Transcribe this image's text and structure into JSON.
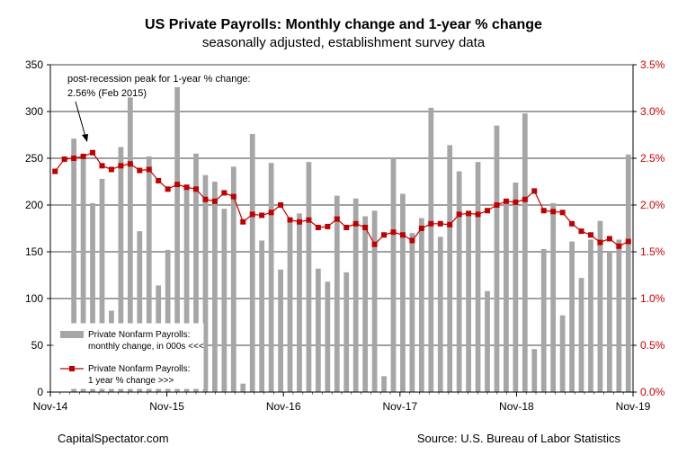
{
  "chart_data": {
    "type": "bar+line",
    "title": "US Private Payrolls: Monthly change and 1-year % change",
    "subtitle": "seasonally adjusted, establishment survey data",
    "x_tick_labels": [
      "Nov-14",
      "Nov-15",
      "Nov-16",
      "Nov-17",
      "Nov-18",
      "Nov-19"
    ],
    "y_left": {
      "min": 0,
      "max": 350,
      "ticks": [
        "0",
        "50",
        "100",
        "150",
        "200",
        "250",
        "300",
        "350"
      ]
    },
    "y_right": {
      "min": 0,
      "max": 3.5,
      "ticks": [
        "0.0%",
        "0.5%",
        "1.0%",
        "1.5%",
        "2.0%",
        "2.5%",
        "3.0%",
        "3.5%"
      ]
    },
    "grid": true,
    "legend_position": "bottom-left",
    "series": [
      {
        "name": "Private Nonfarm Payrolls:",
        "name_line2": "monthly change, in 000s <<<",
        "kind": "bar",
        "axis": "left",
        "color": "#a6a6a6",
        "values": [
          271,
          254,
          202,
          228,
          87,
          262,
          315,
          172,
          252,
          114,
          152,
          326,
          218,
          255,
          232,
          225,
          196,
          241,
          9,
          276,
          162,
          245,
          131,
          181,
          191,
          246,
          132,
          118,
          210,
          128,
          207,
          188,
          194,
          17,
          250,
          212,
          170,
          186,
          304,
          166,
          264,
          236,
          189,
          246,
          108,
          285,
          199,
          224,
          298,
          46,
          153,
          202,
          82,
          161,
          122,
          163,
          183,
          150,
          163,
          254
        ]
      },
      {
        "name": "Private Nonfarm Payrolls:",
        "name_line2": "1 year % change >>>",
        "kind": "line",
        "axis": "right",
        "color": "#c00000",
        "values": [
          2.36,
          2.49,
          2.5,
          2.52,
          2.56,
          2.42,
          2.38,
          2.42,
          2.44,
          2.37,
          2.38,
          2.26,
          2.17,
          2.22,
          2.19,
          2.17,
          2.06,
          2.04,
          2.13,
          2.09,
          1.82,
          1.9,
          1.89,
          1.92,
          2.0,
          1.84,
          1.82,
          1.84,
          1.76,
          1.77,
          1.85,
          1.76,
          1.8,
          1.76,
          1.58,
          1.68,
          1.71,
          1.68,
          1.62,
          1.75,
          1.8,
          1.8,
          1.79,
          1.9,
          1.91,
          1.9,
          1.94,
          2.0,
          2.04,
          2.03,
          2.06,
          2.15,
          1.94,
          1.93,
          1.92,
          1.8,
          1.72,
          1.68,
          1.6,
          1.64,
          1.56,
          1.61
        ]
      }
    ],
    "annotation": {
      "line1": "post-recession peak for 1-year % change:",
      "line2": "2.56% (Feb 2015)"
    }
  },
  "footer": {
    "left": "CapitalSpectator.com",
    "right": "Source: U.S. Bureau of Labor Statistics"
  }
}
